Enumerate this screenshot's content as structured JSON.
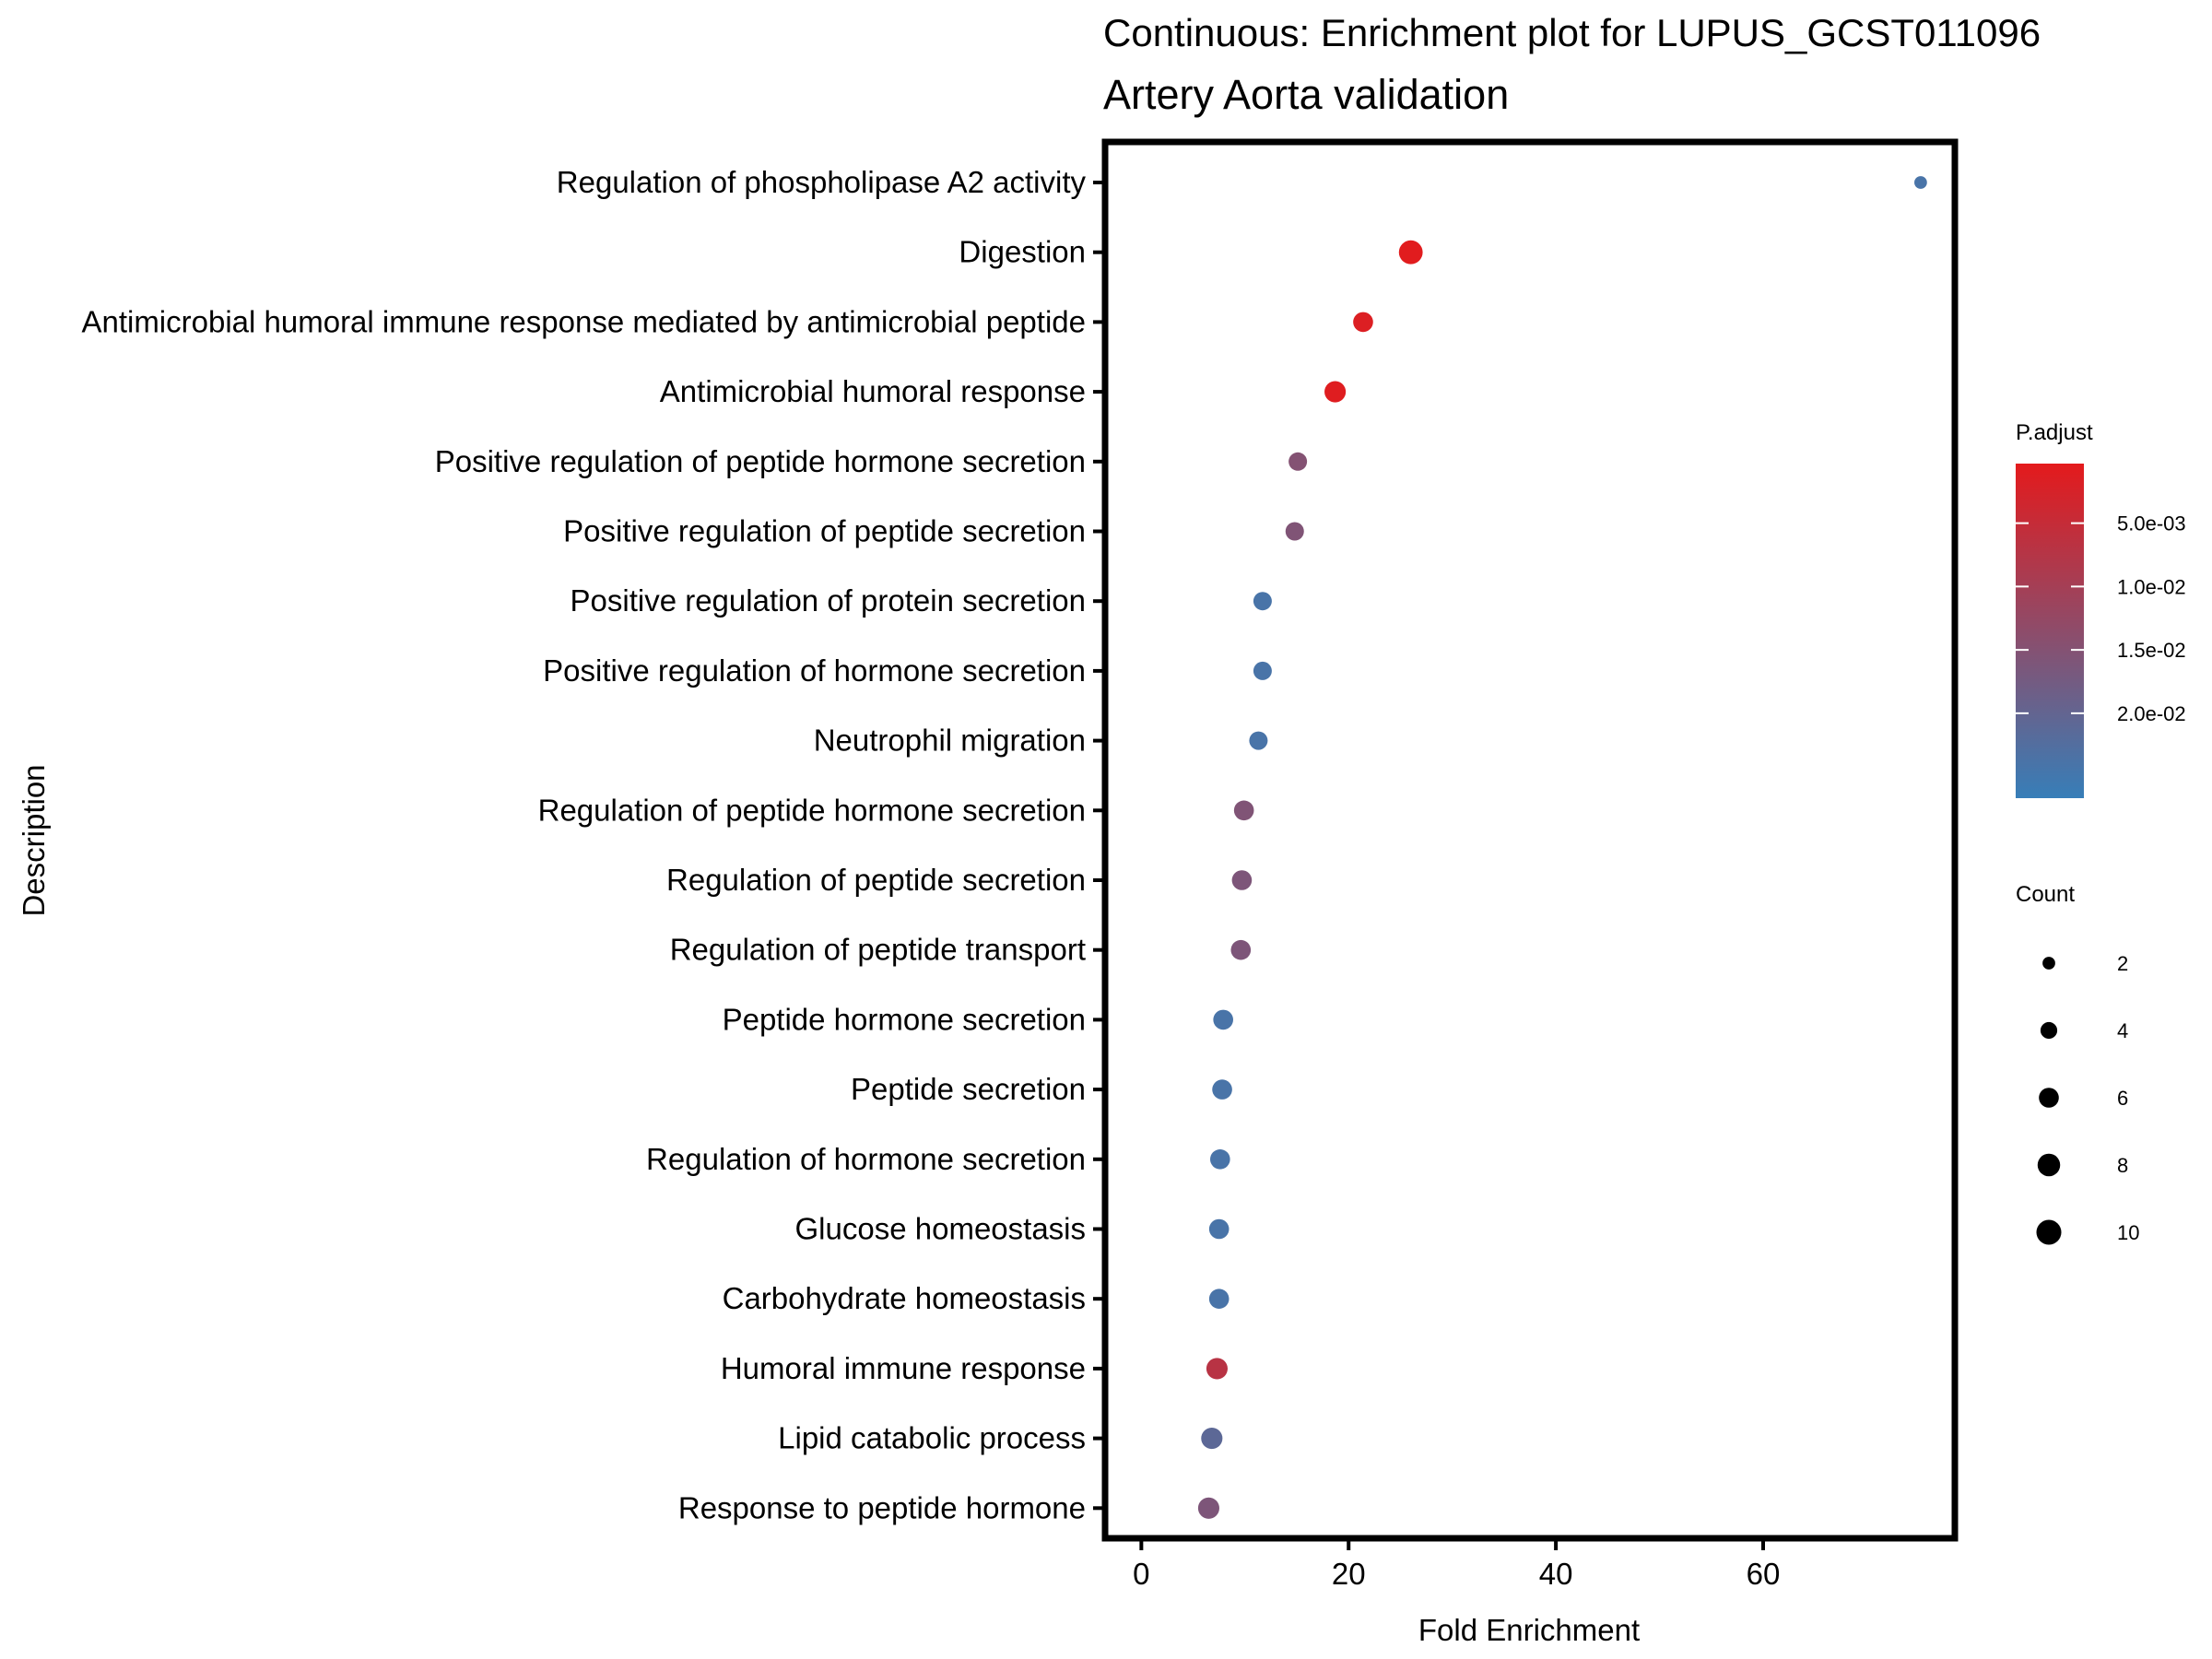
{
  "chart_data": {
    "type": "scatter",
    "title": "Continuous: Enrichment plot for LUPUS_GCST011096",
    "subtitle": "Artery Aorta validation",
    "xlabel": "Fold Enrichment",
    "ylabel": "Description",
    "xlim": [
      -3.5,
      78.5
    ],
    "x_ticks": [
      0,
      20,
      40,
      60
    ],
    "grid": false,
    "categories": [
      "Regulation of phospholipase A2 activity",
      "Digestion",
      "Antimicrobial humoral immune response mediated by antimicrobial peptide",
      "Antimicrobial humoral response",
      "Positive regulation of peptide hormone secretion",
      "Positive regulation of peptide secretion",
      "Positive regulation of protein secretion",
      "Positive regulation of hormone secretion",
      "Neutrophil migration",
      "Regulation of peptide hormone secretion",
      "Regulation of peptide secretion",
      "Regulation of peptide transport",
      "Peptide hormone secretion",
      "Peptide secretion",
      "Regulation of hormone secretion",
      "Glucose homeostasis",
      "Carbohydrate homeostasis",
      "Humoral immune response",
      "Lipid catabolic process",
      "Response to peptide hormone"
    ],
    "points": [
      {
        "label": "Regulation of phospholipase A2 activity",
        "fold_enrichment": 75.2,
        "count": 2,
        "p_adjust": 0.024
      },
      {
        "label": "Digestion",
        "fold_enrichment": 26.0,
        "count": 9,
        "p_adjust": 0.0007
      },
      {
        "label": "Antimicrobial humoral immune response mediated by antimicrobial peptide",
        "fold_enrichment": 21.4,
        "count": 6,
        "p_adjust": 0.0015
      },
      {
        "label": "Antimicrobial humoral response",
        "fold_enrichment": 18.7,
        "count": 7,
        "p_adjust": 0.001
      },
      {
        "label": "Positive regulation of peptide hormone secretion",
        "fold_enrichment": 15.1,
        "count": 5,
        "p_adjust": 0.015
      },
      {
        "label": "Positive regulation of peptide secretion",
        "fold_enrichment": 14.8,
        "count": 5,
        "p_adjust": 0.0155
      },
      {
        "label": "Positive regulation of protein secretion",
        "fold_enrichment": 11.7,
        "count": 5,
        "p_adjust": 0.024
      },
      {
        "label": "Positive regulation of hormone secretion",
        "fold_enrichment": 11.7,
        "count": 5,
        "p_adjust": 0.024
      },
      {
        "label": "Neutrophil migration",
        "fold_enrichment": 11.3,
        "count": 5,
        "p_adjust": 0.024
      },
      {
        "label": "Regulation of peptide hormone secretion",
        "fold_enrichment": 9.9,
        "count": 6,
        "p_adjust": 0.0155
      },
      {
        "label": "Regulation of peptide secretion",
        "fold_enrichment": 9.7,
        "count": 6,
        "p_adjust": 0.016
      },
      {
        "label": "Regulation of peptide transport",
        "fold_enrichment": 9.6,
        "count": 6,
        "p_adjust": 0.016
      },
      {
        "label": "Peptide hormone secretion",
        "fold_enrichment": 7.9,
        "count": 6,
        "p_adjust": 0.024
      },
      {
        "label": "Peptide secretion",
        "fold_enrichment": 7.8,
        "count": 6,
        "p_adjust": 0.024
      },
      {
        "label": "Regulation of hormone secretion",
        "fold_enrichment": 7.6,
        "count": 6,
        "p_adjust": 0.024
      },
      {
        "label": "Glucose homeostasis",
        "fold_enrichment": 7.5,
        "count": 6,
        "p_adjust": 0.024
      },
      {
        "label": "Carbohydrate homeostasis",
        "fold_enrichment": 7.5,
        "count": 6,
        "p_adjust": 0.024
      },
      {
        "label": "Humoral immune response",
        "fold_enrichment": 7.3,
        "count": 7,
        "p_adjust": 0.007
      },
      {
        "label": "Lipid catabolic process",
        "fold_enrichment": 6.8,
        "count": 7,
        "p_adjust": 0.021
      },
      {
        "label": "Response to peptide hormone",
        "fold_enrichment": 6.5,
        "count": 7,
        "p_adjust": 0.016
      }
    ],
    "color_legend": {
      "title": "P.adjust",
      "low_color": "#e41a1c",
      "high_color": "#377eb8",
      "domain": [
        0.0003,
        0.0267
      ],
      "ticks": [
        0.005,
        0.01,
        0.015,
        0.02
      ],
      "tick_labels": [
        "5.0e-03",
        "1.0e-02",
        "1.5e-02",
        "2.0e-02"
      ]
    },
    "size_legend": {
      "title": "Count",
      "values": [
        2,
        4,
        6,
        8,
        10
      ],
      "labels": [
        "2",
        "4",
        "6",
        "8",
        "10"
      ]
    },
    "legend_position": "right"
  }
}
